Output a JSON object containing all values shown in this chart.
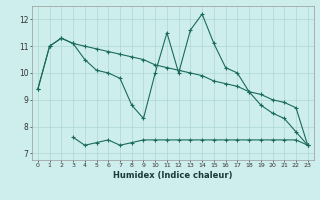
{
  "xlabel": "Humidex (Indice chaleur)",
  "background_color": "#ceeeed",
  "line_color": "#1a6b5a",
  "grid_color": "#aed8d4",
  "xlim": [
    -0.5,
    23.5
  ],
  "ylim": [
    6.75,
    12.5
  ],
  "yticks": [
    7,
    8,
    9,
    10,
    11,
    12
  ],
  "xticks": [
    0,
    1,
    2,
    3,
    4,
    5,
    6,
    7,
    8,
    9,
    10,
    11,
    12,
    13,
    14,
    15,
    16,
    17,
    18,
    19,
    20,
    21,
    22,
    23
  ],
  "line1_x": [
    0,
    1,
    2,
    3,
    4,
    5,
    6,
    7,
    8,
    9,
    10,
    11,
    12,
    13,
    14,
    15,
    16,
    17,
    18,
    19,
    20,
    21,
    22,
    23
  ],
  "line1_y": [
    9.4,
    11.0,
    11.3,
    11.1,
    10.5,
    10.1,
    10.0,
    9.8,
    8.8,
    8.3,
    10.0,
    11.5,
    10.0,
    11.6,
    12.2,
    11.1,
    10.2,
    10.0,
    9.3,
    8.8,
    8.5,
    8.3,
    7.8,
    7.3
  ],
  "line2_x": [
    0,
    1,
    2,
    3,
    4,
    5,
    6,
    7,
    8,
    9,
    10,
    11,
    12,
    13,
    14,
    15,
    16,
    17,
    18,
    19,
    20,
    21,
    22,
    23
  ],
  "line2_y": [
    9.4,
    11.0,
    11.3,
    11.1,
    11.0,
    10.9,
    10.8,
    10.7,
    10.6,
    10.5,
    10.3,
    10.2,
    10.1,
    10.0,
    9.9,
    9.7,
    9.6,
    9.5,
    9.3,
    9.2,
    9.0,
    8.9,
    8.7,
    7.3
  ],
  "line3_x": [
    3,
    4,
    5,
    6,
    7,
    8,
    9,
    10,
    11,
    12,
    13,
    14,
    15,
    16,
    17,
    18,
    19,
    20,
    21,
    22,
    23
  ],
  "line3_y": [
    7.6,
    7.3,
    7.4,
    7.5,
    7.3,
    7.4,
    7.5,
    7.5,
    7.5,
    7.5,
    7.5,
    7.5,
    7.5,
    7.5,
    7.5,
    7.5,
    7.5,
    7.5,
    7.5,
    7.5,
    7.3
  ]
}
